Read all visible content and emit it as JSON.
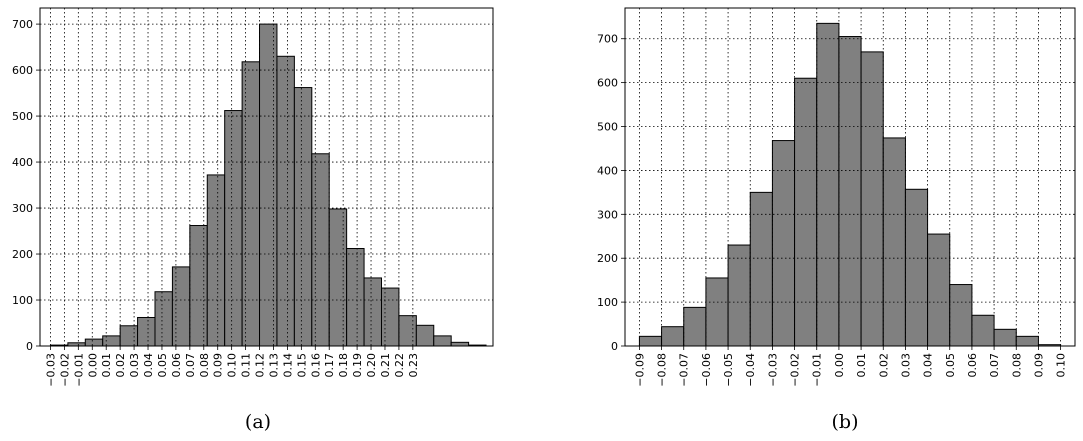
{
  "chart_data": [
    {
      "type": "bar",
      "caption": "(a)",
      "bin_width": 0.0125,
      "bins": [
        {
          "x0": -0.03,
          "x1": -0.0175,
          "value": 2
        },
        {
          "x0": -0.0175,
          "x1": -0.005,
          "value": 7
        },
        {
          "x0": -0.005,
          "x1": 0.0075,
          "value": 15
        },
        {
          "x0": 0.0075,
          "x1": 0.02,
          "value": 22
        },
        {
          "x0": 0.02,
          "x1": 0.0325,
          "value": 44
        },
        {
          "x0": 0.0325,
          "x1": 0.045,
          "value": 62
        },
        {
          "x0": 0.045,
          "x1": 0.0575,
          "value": 118
        },
        {
          "x0": 0.0575,
          "x1": 0.07,
          "value": 172
        },
        {
          "x0": 0.07,
          "x1": 0.0825,
          "value": 262
        },
        {
          "x0": 0.0825,
          "x1": 0.095,
          "value": 372
        },
        {
          "x0": 0.095,
          "x1": 0.1075,
          "value": 512
        },
        {
          "x0": 0.1075,
          "x1": 0.12,
          "value": 618
        },
        {
          "x0": 0.12,
          "x1": 0.1325,
          "value": 700
        },
        {
          "x0": 0.1325,
          "x1": 0.145,
          "value": 630
        },
        {
          "x0": 0.145,
          "x1": 0.1575,
          "value": 562
        },
        {
          "x0": 0.1575,
          "x1": 0.17,
          "value": 418
        },
        {
          "x0": 0.17,
          "x1": 0.1825,
          "value": 298
        },
        {
          "x0": 0.1825,
          "x1": 0.195,
          "value": 212
        },
        {
          "x0": 0.195,
          "x1": 0.2075,
          "value": 148
        },
        {
          "x0": 0.2075,
          "x1": 0.22,
          "value": 126
        },
        {
          "x0": 0.22,
          "x1": 0.2325,
          "value": 66
        },
        {
          "x0": 0.2325,
          "x1": 0.245,
          "value": 45
        },
        {
          "x0": 0.245,
          "x1": 0.2575,
          "value": 22
        },
        {
          "x0": 0.2575,
          "x1": 0.27,
          "value": 8
        },
        {
          "x0": 0.27,
          "x1": 0.2825,
          "value": 2
        }
      ],
      "x_ticks": [
        "−0.03",
        "−0.02",
        "−0.01",
        "0.00",
        "0.01",
        "0.02",
        "0.03",
        "0.04",
        "0.05",
        "0.06",
        "0.07",
        "0.08",
        "0.09",
        "0.10",
        "0.11",
        "0.12",
        "0.13",
        "0.14",
        "0.15",
        "0.16",
        "0.17",
        "0.18",
        "0.19",
        "0.20",
        "0.21",
        "0.22",
        "0.23"
      ],
      "y_ticks": [
        "0",
        "100",
        "200",
        "300",
        "400",
        "500",
        "600",
        "700"
      ],
      "ylim": [
        0,
        735
      ],
      "grid": true
    },
    {
      "type": "bar",
      "caption": "(b)",
      "bin_width": 0.01,
      "bins": [
        {
          "x0": -0.09,
          "x1": -0.08,
          "value": 22
        },
        {
          "x0": -0.08,
          "x1": -0.07,
          "value": 44
        },
        {
          "x0": -0.07,
          "x1": -0.06,
          "value": 88
        },
        {
          "x0": -0.06,
          "x1": -0.05,
          "value": 155
        },
        {
          "x0": -0.05,
          "x1": -0.04,
          "value": 230
        },
        {
          "x0": -0.04,
          "x1": -0.03,
          "value": 350
        },
        {
          "x0": -0.03,
          "x1": -0.02,
          "value": 468
        },
        {
          "x0": -0.02,
          "x1": -0.01,
          "value": 610
        },
        {
          "x0": -0.01,
          "x1": 0.0,
          "value": 735
        },
        {
          "x0": 0.0,
          "x1": 0.01,
          "value": 705
        },
        {
          "x0": 0.01,
          "x1": 0.02,
          "value": 670
        },
        {
          "x0": 0.02,
          "x1": 0.03,
          "value": 474
        },
        {
          "x0": 0.03,
          "x1": 0.04,
          "value": 357
        },
        {
          "x0": 0.04,
          "x1": 0.05,
          "value": 255
        },
        {
          "x0": 0.05,
          "x1": 0.06,
          "value": 140
        },
        {
          "x0": 0.06,
          "x1": 0.07,
          "value": 70
        },
        {
          "x0": 0.07,
          "x1": 0.08,
          "value": 38
        },
        {
          "x0": 0.08,
          "x1": 0.09,
          "value": 22
        },
        {
          "x0": 0.09,
          "x1": 0.1,
          "value": 3
        }
      ],
      "x_ticks": [
        "−0.09",
        "−0.08",
        "−0.07",
        "−0.06",
        "−0.05",
        "−0.04",
        "−0.03",
        "−0.02",
        "−0.01",
        "0.00",
        "0.01",
        "0.02",
        "0.03",
        "0.04",
        "0.05",
        "0.06",
        "0.07",
        "0.08",
        "0.09",
        "0.10"
      ],
      "y_ticks": [
        "0",
        "100",
        "200",
        "300",
        "400",
        "500",
        "600",
        "700"
      ],
      "ylim": [
        0,
        770
      ],
      "grid": true
    }
  ],
  "colors": {
    "bar_fill": "#808080",
    "bar_edge": "#000000",
    "grid": "#000000",
    "axis": "#000000",
    "background": "#ffffff"
  }
}
